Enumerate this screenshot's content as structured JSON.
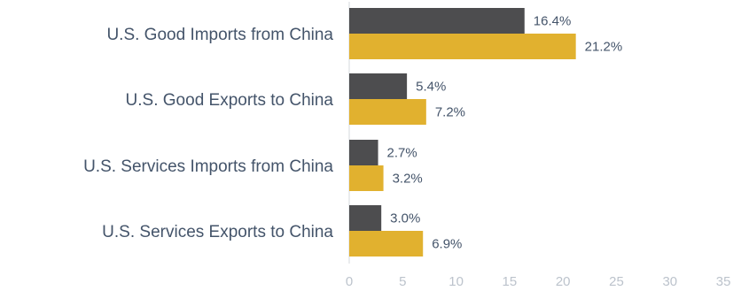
{
  "chart_data": {
    "type": "bar",
    "orientation": "horizontal",
    "title": "",
    "xlabel": "",
    "ylabel": "",
    "categories": [
      "U.S. Good Imports from China",
      "U.S. Good Exports to China",
      "U.S. Services Imports from China",
      "U.S. Services Exports to China"
    ],
    "series": [
      {
        "color": "#4d4d4f",
        "values": [
          16.4,
          5.4,
          2.7,
          3.0
        ],
        "labels": [
          "16.4%",
          "5.4%",
          "2.7%",
          "3.0%"
        ]
      },
      {
        "color": "#e1b12f",
        "values": [
          21.2,
          7.2,
          3.2,
          6.9
        ],
        "labels": [
          "21.2%",
          "7.2%",
          "3.2%",
          "6.9%"
        ]
      }
    ],
    "xlim": [
      0,
      35
    ],
    "xticks": [
      0,
      5,
      10,
      15,
      20,
      25,
      30,
      35
    ],
    "xtick_labels": [
      "0",
      "5",
      "10",
      "15",
      "20",
      "25",
      "30",
      "35"
    ],
    "grid": false,
    "legend": "none"
  }
}
